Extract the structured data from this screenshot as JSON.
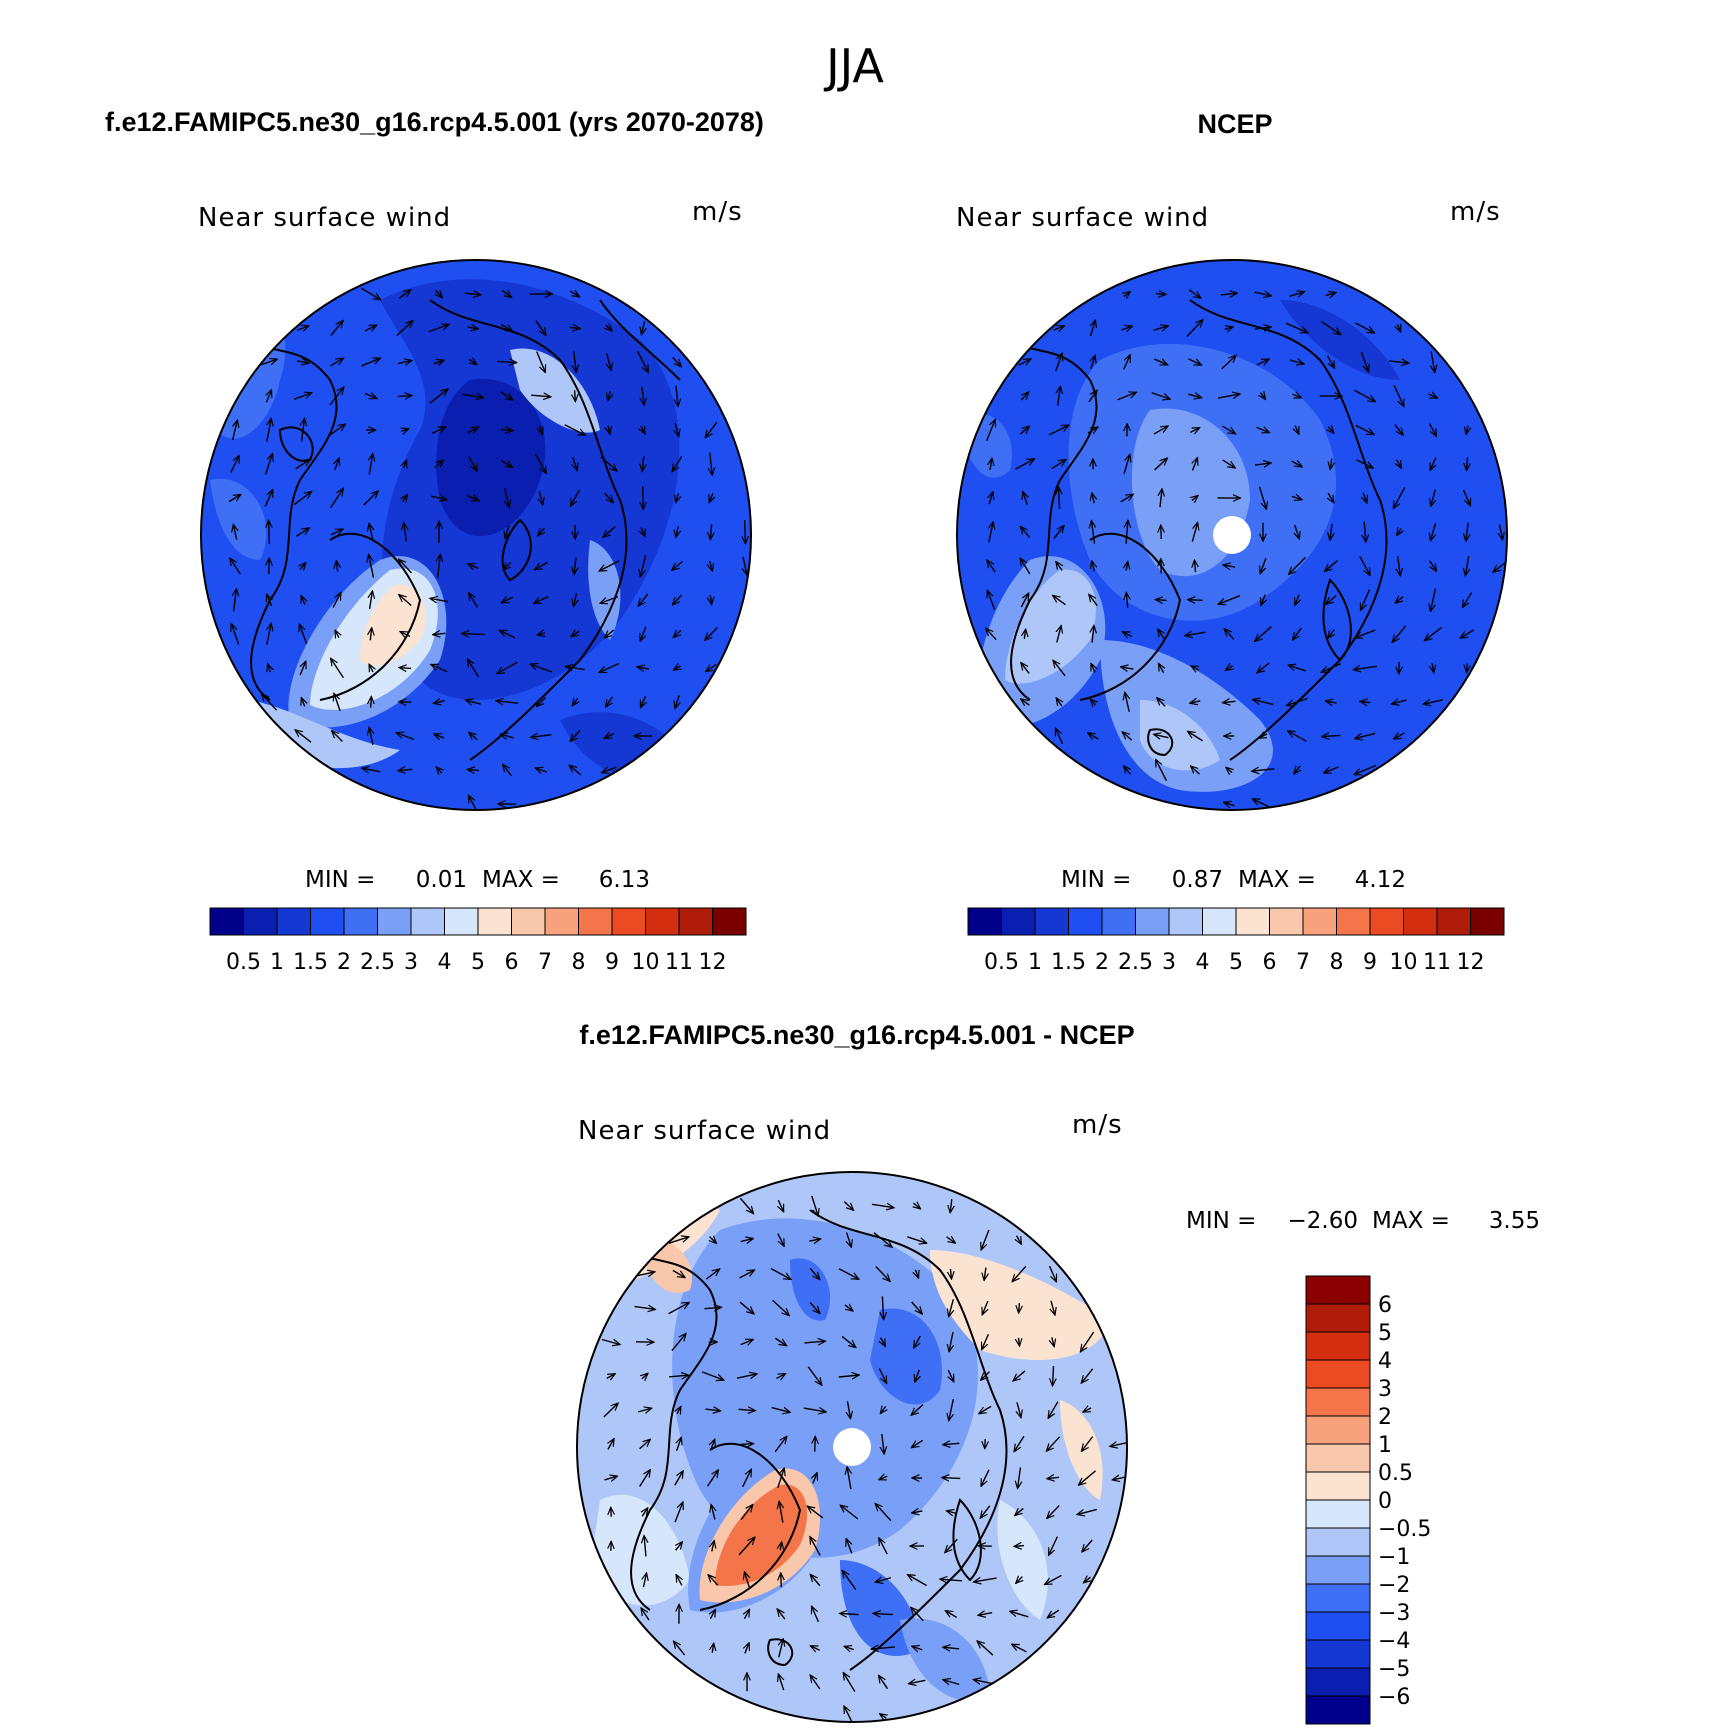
{
  "page": {
    "main_title": "JJA"
  },
  "panels": [
    {
      "id": "model",
      "title": "f.e12.FAMIPC5.ne30_g16.rcp4.5.001 (yrs 2070-2078)",
      "subtitle_left": "Near surface wind",
      "subtitle_right": "m/s",
      "min_label": "MIN =",
      "min_value": "0.01",
      "max_label": "MAX =",
      "max_value": "6.13",
      "colorbar_ticks": [
        "0.5",
        "1",
        "1.5",
        "2",
        "2.5",
        "3",
        "4",
        "5",
        "6",
        "7",
        "8",
        "9",
        "10",
        "11",
        "12"
      ]
    },
    {
      "id": "ncep",
      "title": "NCEP",
      "subtitle_left": "Near surface wind",
      "subtitle_right": "m/s",
      "min_label": "MIN =",
      "min_value": "0.87",
      "max_label": "MAX =",
      "max_value": "4.12",
      "colorbar_ticks": [
        "0.5",
        "1",
        "1.5",
        "2",
        "2.5",
        "3",
        "4",
        "5",
        "6",
        "7",
        "8",
        "9",
        "10",
        "11",
        "12"
      ]
    },
    {
      "id": "diff",
      "title": "f.e12.FAMIPC5.ne30_g16.rcp4.5.001 - NCEP",
      "subtitle_left": "Near surface wind",
      "subtitle_right": "m/s",
      "min_label": "MIN =",
      "min_value": "−2.60",
      "max_label": "MAX =",
      "max_value": "3.55",
      "colorbar_ticks": [
        "6",
        "5",
        "4",
        "3",
        "2",
        "1",
        "0.5",
        "0",
        "−0.5",
        "−1",
        "−2",
        "−3",
        "−4",
        "−5",
        "−6"
      ]
    }
  ],
  "colors": {
    "abs_scale": [
      "#00008b",
      "#0a1fb0",
      "#1537d3",
      "#1f4ff0",
      "#3f6ff5",
      "#7a9ff7",
      "#aec7f8",
      "#d6e6fb",
      "#fbe3d2",
      "#f9c7ab",
      "#f7a27c",
      "#f4754a",
      "#ec4a22",
      "#d42e10",
      "#b01c0a",
      "#7a0000"
    ],
    "diff_scale": [
      "#8b0000",
      "#b01c0a",
      "#d42e10",
      "#ec4a22",
      "#f4754a",
      "#f7a27c",
      "#f9c7ab",
      "#fbe3d2",
      "#d6e6fb",
      "#aec7f8",
      "#7a9ff7",
      "#3f6ff5",
      "#1f4ff0",
      "#1537d3",
      "#0a1fb0",
      "#00008b"
    ]
  }
}
